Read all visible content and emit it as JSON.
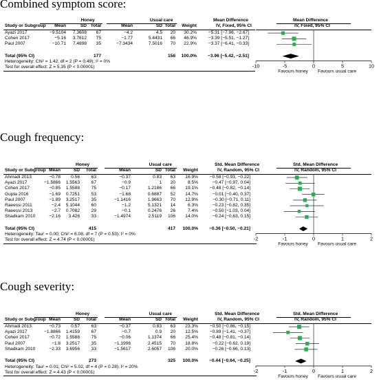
{
  "plots": [
    {
      "title": "Combined symptom score:",
      "measure": "md",
      "col_effect": "Mean Difference",
      "col_effect_sub": "IV, Fixed, 95% CI",
      "col_forest": "Mean Difference",
      "col_forest_sub": "IV, Fixed, 95% CI",
      "hdr_group1": "Honey",
      "hdr_group2": "Usual care",
      "col_study": "Study or Subgroup",
      "col_mean": "Mean",
      "col_sd": "SD",
      "col_total": "Total",
      "col_weight": "Weight",
      "studies": [
        {
          "name": "Ayazi 2017",
          "m1": "−9.5104",
          "sd1": "7.3608",
          "n1": "67",
          "m2": "−4.2",
          "sd2": "4.5",
          "n2": "20",
          "weight": "30.2%",
          "ci": "−5.31 [−7.96, −2.67]"
        },
        {
          "name": "Cohen 2017",
          "m1": "−5.16",
          "sd1": "3.7612",
          "n1": "75",
          "m2": "−1.77",
          "sd2": "5.4431",
          "n2": "66",
          "weight": "46.9%",
          "ci": "−3.39 [−5.51, −1.27]"
        },
        {
          "name": "Paul 2007",
          "m1": "−10.71",
          "sd1": "7.4898",
          "n1": "35",
          "m2": "−7.3434",
          "sd2": "7.5016",
          "n2": "70",
          "weight": "22.9%",
          "ci": "−3.37 [−6.41, −0.33]"
        }
      ],
      "total_label": "Total (95% CI)",
      "total_n1": "177",
      "total_n2": "156",
      "total_weight": "100.0%",
      "total_ci": "−3.96 [−5.42, −2.51]",
      "heterogeneity": "Heterogeneity: Chi² = 1.42, df = 2 (P = 0.49); I² = 0%",
      "overall": "Test for overall effect: Z = 5.35 (P < 0.00001)",
      "axis_ticks": [
        "-10",
        "-5",
        "0",
        "5",
        "10"
      ],
      "favours_left": "Favours honey",
      "favours_right": "Favours usual care",
      "chart_data": {
        "type": "scatter",
        "xlim": [
          -10,
          10
        ],
        "ticks": [
          -10,
          -5,
          0,
          5,
          10
        ],
        "points": [
          {
            "study": "Ayazi 2017",
            "est": -5.31,
            "lo": -7.96,
            "hi": -2.67,
            "weight": 30.2
          },
          {
            "study": "Cohen 2017",
            "est": -3.39,
            "lo": -5.51,
            "hi": -1.27,
            "weight": 46.9
          },
          {
            "study": "Paul 2007",
            "est": -3.37,
            "lo": -6.41,
            "hi": -0.33,
            "weight": 22.9
          }
        ],
        "pooled": {
          "est": -3.96,
          "lo": -5.42,
          "hi": -2.51
        }
      }
    },
    {
      "title": "Cough frequency:",
      "measure": "smd",
      "col_effect": "Std. Mean Difference",
      "col_effect_sub": "IV, Random, 95% CI",
      "col_forest": "Std. Mean Difference",
      "col_forest_sub": "IV, Random, 95% CI",
      "hdr_group1": "Honey",
      "hdr_group2": "Usual care",
      "col_study": "Study or Subgroup",
      "col_mean": "Mean",
      "col_sd": "SD",
      "col_total": "Total",
      "col_weight": "Weight",
      "studies": [
        {
          "name": "Ahmadi 2013",
          "m1": "−0.78",
          "sd1": "0.56",
          "n1": "63",
          "m2": "−0.37",
          "sd2": "0.83",
          "n2": "63",
          "weight": "16.9%",
          "ci": "−0.58 [−0.93, −0.22]"
        },
        {
          "name": "Ayazi 2017",
          "m1": "−1.5866",
          "sd1": "1.5563",
          "n1": "67",
          "m2": "−0.9",
          "sd2": "1",
          "n2": "20",
          "weight": "8.5%",
          "ci": "−0.47 [−0.97, 0.04]"
        },
        {
          "name": "Cohen 2017",
          "m1": "−0.85",
          "sd1": "1.5588",
          "n1": "75",
          "m2": "−0.17",
          "sd2": "1.2186",
          "n2": "66",
          "weight": "19.1%",
          "ci": "−0.48 [−0.82, −0.14]"
        },
        {
          "name": "Gupta 2016",
          "m1": "−1.69",
          "sd1": "0.7251",
          "n1": "53",
          "m2": "−1.68",
          "sd2": "0.6887",
          "n2": "52",
          "weight": "14.7%",
          "ci": "−0.01 [−0.40, 0.37]"
        },
        {
          "name": "Paul 2007",
          "m1": "−1.89",
          "sd1": "3.2517",
          "n1": "35",
          "m2": "−1.1416",
          "sd2": "1.9663",
          "n2": "70",
          "weight": "12.9%",
          "ci": "−0.30 [−0.71, 0.11]"
        },
        {
          "name": "Raeessi 2011",
          "m1": "−2.4",
          "sd1": "5.1044",
          "n1": "60",
          "m2": "−1.2",
          "sd2": "5.1321",
          "n2": "14",
          "weight": "6.3%",
          "ci": "−0.23 [−0.82, 0.35]"
        },
        {
          "name": "Raeessi 2013",
          "m1": "−2.7",
          "sd1": "0.7082",
          "n1": "29",
          "m2": "−0.1",
          "sd2": "0.2476",
          "n2": "26",
          "weight": "7.4%",
          "ci": "−0.50 [−1.03, 0.04]"
        },
        {
          "name": "Shadkam 2010",
          "m1": "−2.16",
          "sd1": "3.426",
          "n1": "33",
          "m2": "−1.4974",
          "sd2": "2.5119",
          "n2": "106",
          "weight": "14.0%",
          "ci": "−0.24 [−0.63, 0.15]"
        }
      ],
      "total_label": "Total (95% CI)",
      "total_n1": "415",
      "total_n2": "417",
      "total_weight": "100.0%",
      "total_ci": "−0.36 [−0.50, −0.21]",
      "heterogeneity": "Heterogeneity: Tau² = 0.00; Chi² = 6.08, df = 7 (P = 0.53); I² = 0%",
      "overall": "Test for overall effect: Z = 4.74 (P < 0.00001)",
      "axis_ticks": [
        "-2",
        "-1",
        "0",
        "1",
        "2"
      ],
      "favours_left": "Favours honey",
      "favours_right": "Favours usual care",
      "chart_data": {
        "type": "scatter",
        "xlim": [
          -2,
          2
        ],
        "ticks": [
          -2,
          -1,
          0,
          1,
          2
        ],
        "points": [
          {
            "study": "Ahmadi 2013",
            "est": -0.58,
            "lo": -0.93,
            "hi": -0.22,
            "weight": 16.9
          },
          {
            "study": "Ayazi 2017",
            "est": -0.47,
            "lo": -0.97,
            "hi": 0.04,
            "weight": 8.5
          },
          {
            "study": "Cohen 2017",
            "est": -0.48,
            "lo": -0.82,
            "hi": -0.14,
            "weight": 19.1
          },
          {
            "study": "Gupta 2016",
            "est": -0.01,
            "lo": -0.4,
            "hi": 0.37,
            "weight": 14.7
          },
          {
            "study": "Paul 2007",
            "est": -0.3,
            "lo": -0.71,
            "hi": 0.11,
            "weight": 12.9
          },
          {
            "study": "Raeessi 2011",
            "est": -0.23,
            "lo": -0.82,
            "hi": 0.35,
            "weight": 6.3
          },
          {
            "study": "Raeessi 2013",
            "est": -0.5,
            "lo": -1.03,
            "hi": 0.04,
            "weight": 7.4
          },
          {
            "study": "Shadkam 2010",
            "est": -0.24,
            "lo": -0.63,
            "hi": 0.15,
            "weight": 14.0
          }
        ],
        "pooled": {
          "est": -0.36,
          "lo": -0.5,
          "hi": -0.21
        }
      }
    },
    {
      "title": "Cough severity:",
      "measure": "smd",
      "col_effect": "Std. Mean Difference",
      "col_effect_sub": "IV, Random, 95% CI",
      "col_forest": "Std. Mean Difference",
      "col_forest_sub": "IV, Random, 95% CI",
      "hdr_group1": "Honey",
      "hdr_group2": "Usual care",
      "col_study": "Study or Subgroup",
      "col_mean": "Mean",
      "col_sd": "SD",
      "col_total": "Total",
      "col_weight": "Weight",
      "studies": [
        {
          "name": "Ahmadi 2013",
          "m1": "−0.73",
          "sd1": "0.57",
          "n1": "63",
          "m2": "−0.37",
          "sd2": "0.83",
          "n2": "63",
          "weight": "23.3%",
          "ci": "−0.50 [−0.86, −0.15]"
        },
        {
          "name": "Ayazi 2017",
          "m1": "−1.8866",
          "sd1": "1.4159",
          "n1": "67",
          "m2": "−0.7",
          "sd2": "0.9",
          "n2": "20",
          "weight": "12.5%",
          "ci": "−0.89 [−1.41, −0.37]"
        },
        {
          "name": "Cohen 2017",
          "m1": "−0.72",
          "sd1": "1.5588",
          "n1": "75",
          "m2": "−0.06",
          "sd2": "1.1374",
          "n2": "66",
          "weight": "25.4%",
          "ci": "−0.48 [−0.81, −0.14]"
        },
        {
          "name": "Paul 2007",
          "m1": "−1.8",
          "sd1": "3.2517",
          "n1": "35",
          "m2": "−1.1996",
          "sd2": "2.4515",
          "n2": "70",
          "weight": "18.8%",
          "ci": "−0.22 [−0.62, 0.19]"
        },
        {
          "name": "Shadkam 2010",
          "m1": "−2.33",
          "sd1": "3.6956",
          "n1": "33",
          "m2": "−1.5617",
          "sd2": "2.6057",
          "n2": "106",
          "weight": "20.0%",
          "ci": "−0.26 [−0.66, 0.13]"
        }
      ],
      "total_label": "Total (95% CI)",
      "total_n1": "273",
      "total_n2": "325",
      "total_weight": "100.0%",
      "total_ci": "−0.44 [−0.64, −0.25]",
      "heterogeneity": "Heterogeneity: Tau² = 0.01; Chi² = 5.02, df = 4 (P = 0.28); I² = 20%",
      "overall": "Test for overall effect: Z = 4.43 (P < 0.00001)",
      "axis_ticks": [
        "-2",
        "-1",
        "0",
        "1",
        "2"
      ],
      "favours_left": "Favours honey",
      "favours_right": "Favours usual care",
      "chart_data": {
        "type": "scatter",
        "xlim": [
          -2,
          2
        ],
        "ticks": [
          -2,
          -1,
          0,
          1,
          2
        ],
        "points": [
          {
            "study": "Ahmadi 2013",
            "est": -0.5,
            "lo": -0.86,
            "hi": -0.15,
            "weight": 23.3
          },
          {
            "study": "Ayazi 2017",
            "est": -0.89,
            "lo": -1.41,
            "hi": -0.37,
            "weight": 12.5
          },
          {
            "study": "Cohen 2017",
            "est": -0.48,
            "lo": -0.81,
            "hi": -0.14,
            "weight": 25.4
          },
          {
            "study": "Paul 2007",
            "est": -0.22,
            "lo": -0.62,
            "hi": 0.19,
            "weight": 18.8
          },
          {
            "study": "Shadkam 2010",
            "est": -0.26,
            "lo": -0.66,
            "hi": 0.13,
            "weight": 20.0
          }
        ],
        "pooled": {
          "est": -0.44,
          "lo": -0.64,
          "hi": -0.25
        }
      }
    }
  ],
  "colors": {
    "marker": "#22b14c",
    "line": "#000000"
  }
}
